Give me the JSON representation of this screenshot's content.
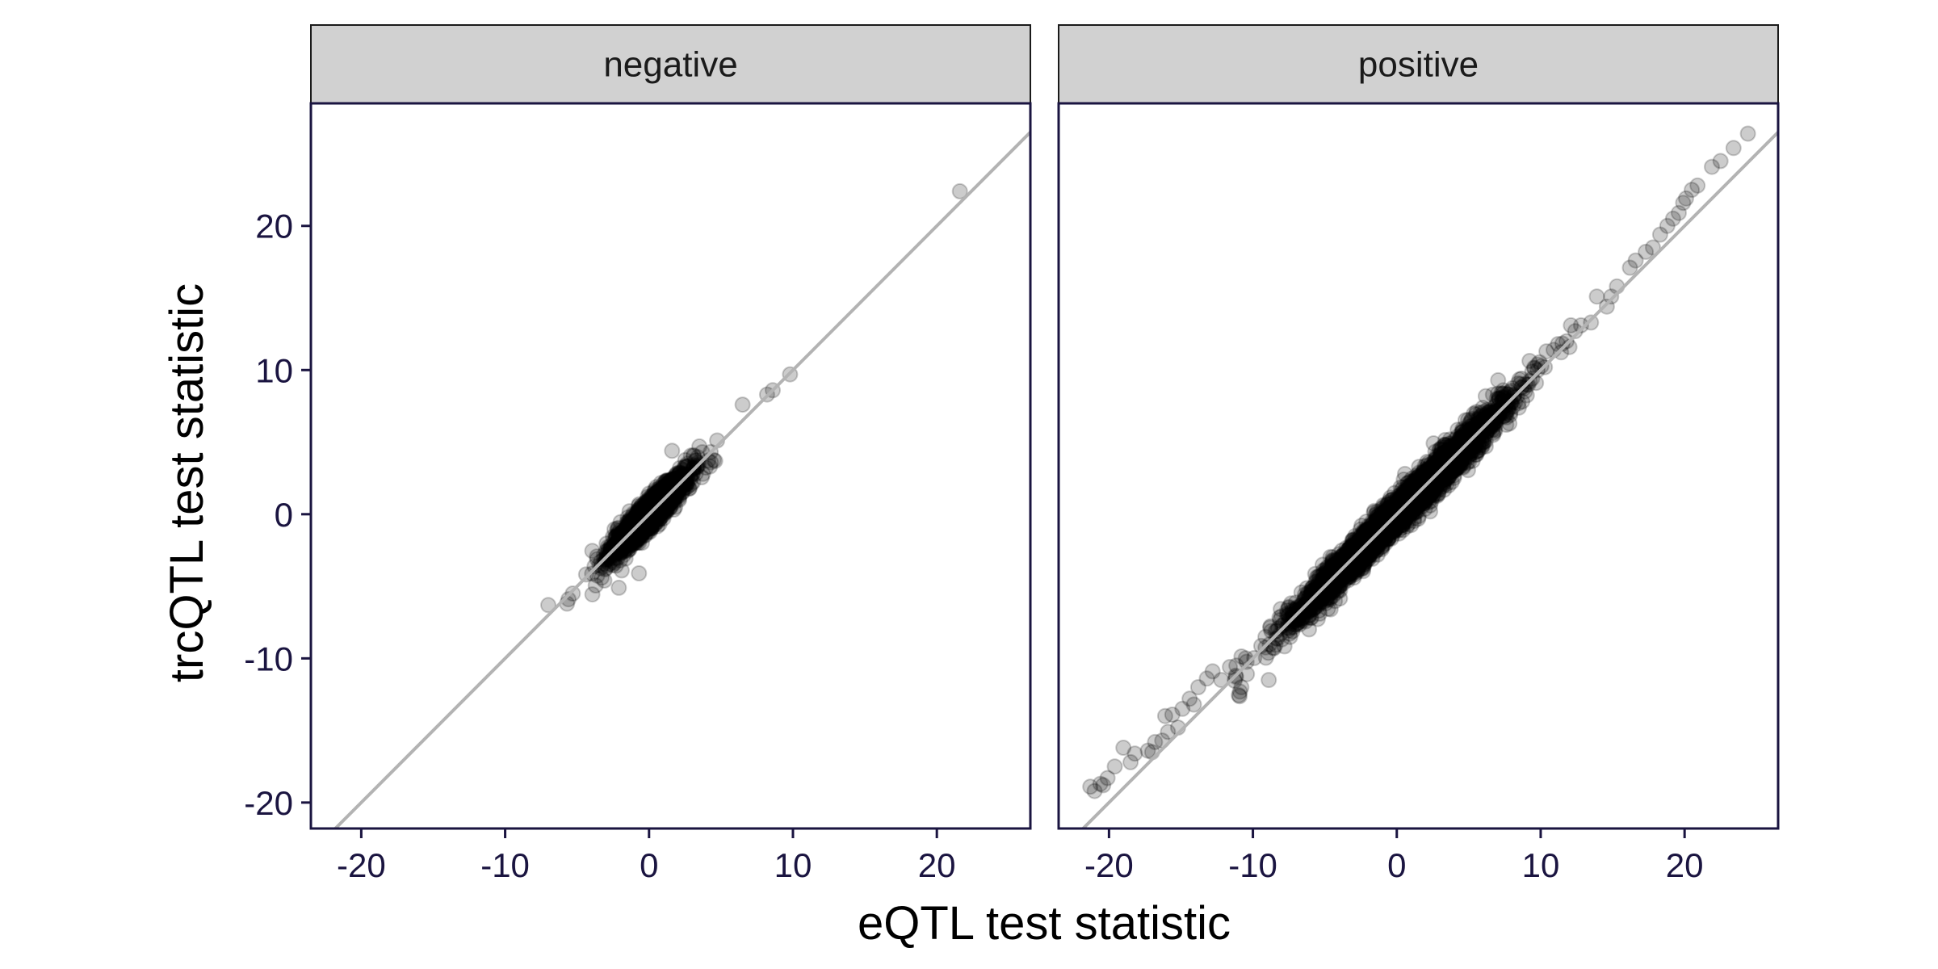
{
  "chart_data": {
    "type": "scatter",
    "xlabel": "eQTL test statistic",
    "ylabel": "trcQTL test statistic",
    "xlim": [
      -23.5,
      26.5
    ],
    "ylim": [
      -21.8,
      28.5
    ],
    "xticks": [
      -20,
      -10,
      0,
      10,
      20
    ],
    "xtick_labels": [
      "-20",
      "-10",
      "0",
      "10",
      "20"
    ],
    "yticks": [
      -20,
      -10,
      0,
      10,
      20
    ],
    "ytick_labels": [
      "-20",
      "-10",
      "0",
      "10",
      "20"
    ],
    "reference_line": {
      "slope": 1,
      "intercept": 0,
      "color": "#b3b3b3"
    },
    "grid": false,
    "point_color": "#000000",
    "point_alpha": 0.2,
    "panels": [
      {
        "label": "negative",
        "bulk": {
          "n": 2600,
          "x_mean": 0,
          "x_sd": 1.25,
          "y_sd": 0.45
        },
        "points": [
          [
            21.6,
            22.4
          ],
          [
            9.8,
            9.7
          ],
          [
            8.6,
            8.6
          ],
          [
            8.2,
            8.3
          ],
          [
            6.5,
            7.6
          ],
          [
            4.6,
            3.7
          ],
          [
            4.3,
            3.6
          ],
          [
            3.7,
            4.3
          ],
          [
            3.5,
            4.7
          ],
          [
            2.7,
            1.9
          ],
          [
            1.6,
            4.4
          ],
          [
            -3.1,
            -4.6
          ],
          [
            -3.3,
            -4.4
          ],
          [
            -2.1,
            -5.1
          ],
          [
            -1.9,
            -3.9
          ],
          [
            -5.3,
            -5.5
          ],
          [
            -5.6,
            -5.9
          ],
          [
            -5.7,
            -6.2
          ],
          [
            -7.0,
            -6.3
          ],
          [
            -0.7,
            -4.1
          ]
        ]
      },
      {
        "label": "positive",
        "bulk": {
          "n": 4200,
          "x_mean": 0,
          "x_sd": 3.4,
          "y_sd": 0.55
        },
        "points": [
          [
            24.4,
            26.4
          ],
          [
            23.4,
            25.4
          ],
          [
            22.5,
            24.5
          ],
          [
            21.9,
            24.1
          ],
          [
            20.9,
            22.8
          ],
          [
            20.5,
            22.5
          ],
          [
            20.1,
            21.9
          ],
          [
            19.9,
            21.6
          ],
          [
            19.6,
            20.9
          ],
          [
            19.2,
            20.5
          ],
          [
            18.8,
            20.0
          ],
          [
            18.3,
            19.4
          ],
          [
            17.8,
            18.5
          ],
          [
            17.3,
            18.2
          ],
          [
            16.6,
            17.6
          ],
          [
            16.2,
            17.1
          ],
          [
            15.3,
            15.8
          ],
          [
            14.9,
            15.1
          ],
          [
            14.6,
            14.4
          ],
          [
            13.9,
            15.1
          ],
          [
            13.5,
            13.3
          ],
          [
            12.8,
            13.1
          ],
          [
            12.4,
            12.7
          ],
          [
            12.1,
            13.1
          ],
          [
            12.0,
            11.6
          ],
          [
            11.8,
            12.0
          ],
          [
            11.2,
            11.8
          ],
          [
            10.9,
            11.4
          ],
          [
            10.4,
            11.3
          ],
          [
            -10.5,
            -10.0
          ],
          [
            -10.8,
            -12.0
          ],
          [
            -10.9,
            -12.3
          ],
          [
            -11.2,
            -11.2
          ],
          [
            -11.6,
            -10.6
          ],
          [
            -12.2,
            -11.5
          ],
          [
            -12.8,
            -10.9
          ],
          [
            -13.2,
            -11.4
          ],
          [
            -13.8,
            -12.0
          ],
          [
            -14.1,
            -13.2
          ],
          [
            -14.4,
            -12.8
          ],
          [
            -14.9,
            -13.5
          ],
          [
            -15.2,
            -14.8
          ],
          [
            -15.6,
            -13.9
          ],
          [
            -15.9,
            -15.1
          ],
          [
            -16.1,
            -14.0
          ],
          [
            -16.3,
            -15.7
          ],
          [
            -16.8,
            -15.8
          ],
          [
            -17.0,
            -16.5
          ],
          [
            -17.3,
            -16.4
          ],
          [
            -18.2,
            -16.6
          ],
          [
            -18.5,
            -17.2
          ],
          [
            -19.0,
            -16.2
          ],
          [
            -19.6,
            -17.5
          ],
          [
            -20.1,
            -18.3
          ],
          [
            -20.4,
            -18.8
          ],
          [
            -20.6,
            -18.7
          ],
          [
            -21.0,
            -19.2
          ],
          [
            -21.3,
            -18.9
          ],
          [
            -8.9,
            -11.5
          ],
          [
            -4.6,
            -6.6
          ],
          [
            -2.2,
            -1.5
          ]
        ]
      }
    ]
  }
}
